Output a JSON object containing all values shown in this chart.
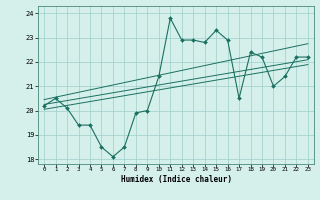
{
  "x": [
    0,
    1,
    2,
    3,
    4,
    5,
    6,
    7,
    8,
    9,
    10,
    11,
    12,
    13,
    14,
    15,
    16,
    17,
    18,
    19,
    20,
    21,
    22,
    23
  ],
  "y_main": [
    20.2,
    20.5,
    20.1,
    19.4,
    19.4,
    18.5,
    18.1,
    18.5,
    19.9,
    20.0,
    21.4,
    23.8,
    22.9,
    22.9,
    22.8,
    23.3,
    22.9,
    20.5,
    22.4,
    22.2,
    21.0,
    21.4,
    22.2,
    22.2
  ],
  "regression_lower": [
    20.05,
    20.13,
    20.21,
    20.29,
    20.37,
    20.45,
    20.53,
    20.61,
    20.69,
    20.77,
    20.85,
    20.93,
    21.01,
    21.09,
    21.17,
    21.25,
    21.33,
    21.41,
    21.49,
    21.57,
    21.65,
    21.73,
    21.81,
    21.89
  ],
  "regression_mid": [
    20.25,
    20.33,
    20.41,
    20.49,
    20.57,
    20.65,
    20.73,
    20.81,
    20.89,
    20.97,
    21.05,
    21.13,
    21.21,
    21.29,
    21.37,
    21.45,
    21.53,
    21.61,
    21.69,
    21.77,
    21.85,
    21.93,
    22.01,
    22.09
  ],
  "regression_upper": [
    20.45,
    20.55,
    20.65,
    20.75,
    20.85,
    20.95,
    21.05,
    21.15,
    21.25,
    21.35,
    21.45,
    21.55,
    21.65,
    21.75,
    21.85,
    21.95,
    22.05,
    22.15,
    22.25,
    22.35,
    22.45,
    22.55,
    22.65,
    22.75
  ],
  "color": "#1a7060",
  "bg_color": "#d5efeb",
  "grid_color": "#9ececa",
  "xlabel": "Humidex (Indice chaleur)",
  "xlim": [
    -0.5,
    23.5
  ],
  "ylim": [
    17.8,
    24.3
  ],
  "yticks": [
    18,
    19,
    20,
    21,
    22,
    23,
    24
  ],
  "xticks": [
    0,
    1,
    2,
    3,
    4,
    5,
    6,
    7,
    8,
    9,
    10,
    11,
    12,
    13,
    14,
    15,
    16,
    17,
    18,
    19,
    20,
    21,
    22,
    23
  ]
}
